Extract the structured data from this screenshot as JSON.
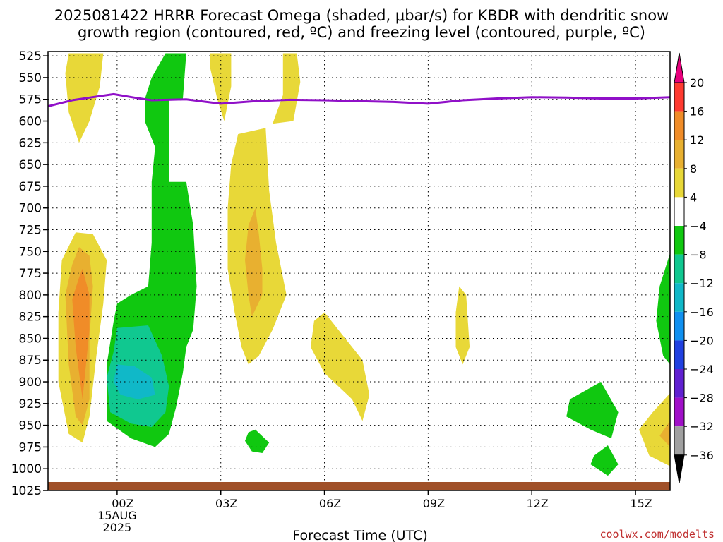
{
  "chart_data": {
    "type": "heatmap",
    "title_lines": [
      "2025081422 HRRR Forecast Omega (shaded, μbar/s) for KBDR with dendritic snow",
      "growth region (contoured, red, ºC) and freezing level (contoured, purple, ºC)"
    ],
    "xlabel": "Forecast Time (UTC)",
    "credit": "coolwx.com/modelts",
    "x_range_hours": [
      -2,
      16
    ],
    "y_range_hpa": [
      520,
      1025
    ],
    "y_ticks": [
      "525",
      "550",
      "575",
      "600",
      "625",
      "650",
      "675",
      "700",
      "725",
      "750",
      "775",
      "800",
      "825",
      "850",
      "875",
      "900",
      "925",
      "950",
      "975",
      "1000",
      "1025"
    ],
    "x_ticks": [
      {
        "hour": 0,
        "label": "00Z",
        "sub1": "15AUG",
        "sub2": "2025"
      },
      {
        "hour": 3,
        "label": "03Z"
      },
      {
        "hour": 6,
        "label": "06Z"
      },
      {
        "hour": 9,
        "label": "09Z"
      },
      {
        "hour": 12,
        "label": "12Z"
      },
      {
        "hour": 15,
        "label": "15Z"
      }
    ],
    "grid": true,
    "colorbar": {
      "levels": [
        "20",
        "16",
        "12",
        "8",
        "4",
        "−4",
        "−8",
        "−12",
        "−16",
        "−20",
        "−24",
        "−28",
        "−32",
        "−36"
      ],
      "bands": [
        "#e8007c",
        "#ff3a30",
        "#f08c28",
        "#e8b030",
        "#e8d838",
        "#ffffff",
        "#10c810",
        "#10c890",
        "#10b8c8",
        "#1090f0",
        "#2040e0",
        "#6020d0",
        "#a010c8",
        "#a0a0a0",
        "#000000"
      ]
    },
    "freezing_level": {
      "color": "#9010c8",
      "points": [
        [
          -2,
          583
        ],
        [
          -1.3,
          576
        ],
        [
          -0.8,
          573
        ],
        [
          -0.1,
          569
        ],
        [
          0.5,
          573
        ],
        [
          1,
          576
        ],
        [
          2,
          575
        ],
        [
          3,
          580
        ],
        [
          4,
          577
        ],
        [
          5,
          575.5
        ],
        [
          6,
          576
        ],
        [
          7,
          577
        ],
        [
          8,
          578
        ],
        [
          9,
          580
        ],
        [
          10,
          576
        ],
        [
          11,
          574
        ],
        [
          12,
          572.5
        ],
        [
          13,
          573
        ],
        [
          14,
          574
        ],
        [
          15,
          574
        ],
        [
          16,
          572.5
        ]
      ]
    },
    "terrain_color": "#a05028",
    "omega_regions": [
      {
        "value": 6,
        "color": "#e8d838",
        "points": [
          [
            -1.4,
            522
          ],
          [
            -0.4,
            522
          ],
          [
            -0.5,
            560
          ],
          [
            -0.8,
            600
          ],
          [
            -1.1,
            625
          ],
          [
            -1.4,
            590
          ],
          [
            -1.5,
            545
          ]
        ]
      },
      {
        "value": -6,
        "color": "#10c810",
        "points": [
          [
            1.4,
            522
          ],
          [
            2.0,
            522
          ],
          [
            1.9,
            575
          ],
          [
            1.5,
            575
          ],
          [
            1.5,
            670
          ],
          [
            2.0,
            670
          ],
          [
            2.2,
            720
          ],
          [
            2.3,
            790
          ],
          [
            2.2,
            840
          ],
          [
            2.0,
            860
          ],
          [
            1.9,
            890
          ],
          [
            1.7,
            930
          ],
          [
            1.5,
            960
          ],
          [
            1.1,
            975
          ],
          [
            0.4,
            965
          ],
          [
            -0.3,
            945
          ],
          [
            -0.3,
            880
          ],
          [
            -0.1,
            830
          ],
          [
            0,
            810
          ],
          [
            0.4,
            800
          ],
          [
            0.9,
            790
          ],
          [
            1.0,
            740
          ],
          [
            1.0,
            690
          ],
          [
            1.0,
            670
          ],
          [
            1.1,
            630
          ],
          [
            0.8,
            600
          ],
          [
            0.8,
            575
          ],
          [
            1.0,
            550
          ]
        ]
      },
      {
        "value": -10,
        "color": "#10c890",
        "points": [
          [
            0,
            838
          ],
          [
            0.9,
            835
          ],
          [
            1.3,
            870
          ],
          [
            1.5,
            905
          ],
          [
            1.4,
            935
          ],
          [
            1.0,
            952
          ],
          [
            0.4,
            948
          ],
          [
            -0.2,
            935
          ],
          [
            -0.3,
            895
          ],
          [
            -0.1,
            865
          ]
        ]
      },
      {
        "value": -14,
        "color": "#10b8c8",
        "points": [
          [
            0,
            880
          ],
          [
            0.5,
            882
          ],
          [
            1.0,
            895
          ],
          [
            1.1,
            915
          ],
          [
            0.6,
            920
          ],
          [
            0.1,
            915
          ],
          [
            -0.1,
            900
          ]
        ]
      },
      {
        "value": 6,
        "color": "#e8d838",
        "points": [
          [
            2.7,
            522
          ],
          [
            3.3,
            522
          ],
          [
            3.3,
            560
          ],
          [
            3.1,
            600
          ],
          [
            2.9,
            575
          ],
          [
            2.7,
            540
          ]
        ]
      },
      {
        "value": 6,
        "color": "#e8d838",
        "points": [
          [
            4.8,
            522
          ],
          [
            5.2,
            522
          ],
          [
            5.3,
            555
          ],
          [
            5.1,
            600
          ],
          [
            4.5,
            603
          ],
          [
            4.8,
            570
          ]
        ]
      },
      {
        "value": 6,
        "color": "#e8d838",
        "points": [
          [
            3.5,
            615
          ],
          [
            4.3,
            608
          ],
          [
            4.4,
            680
          ],
          [
            4.6,
            740
          ],
          [
            4.9,
            800
          ],
          [
            4.5,
            840
          ],
          [
            4.1,
            870
          ],
          [
            3.8,
            880
          ],
          [
            3.6,
            860
          ],
          [
            3.4,
            820
          ],
          [
            3.2,
            770
          ],
          [
            3.2,
            740
          ],
          [
            3.2,
            700
          ],
          [
            3.3,
            650
          ]
        ]
      },
      {
        "value": 10,
        "color": "#e8b030",
        "points": [
          [
            4.0,
            700
          ],
          [
            4.1,
            730
          ],
          [
            4.2,
            770
          ],
          [
            4.2,
            800
          ],
          [
            3.9,
            825
          ],
          [
            3.8,
            800
          ],
          [
            3.7,
            760
          ],
          [
            3.8,
            720
          ]
        ]
      },
      {
        "value": 6,
        "color": "#e8d838",
        "points": [
          [
            -1.2,
            728
          ],
          [
            -0.7,
            730
          ],
          [
            -0.3,
            760
          ],
          [
            -0.4,
            810
          ],
          [
            -0.6,
            870
          ],
          [
            -0.8,
            940
          ],
          [
            -1.0,
            970
          ],
          [
            -1.4,
            960
          ],
          [
            -1.7,
            900
          ],
          [
            -1.7,
            820
          ],
          [
            -1.6,
            760
          ]
        ]
      },
      {
        "value": 10,
        "color": "#e8b030",
        "points": [
          [
            -1.1,
            745
          ],
          [
            -0.8,
            755
          ],
          [
            -0.7,
            790
          ],
          [
            -0.8,
            850
          ],
          [
            -0.8,
            920
          ],
          [
            -1.0,
            950
          ],
          [
            -1.2,
            940
          ],
          [
            -1.4,
            880
          ],
          [
            -1.5,
            800
          ],
          [
            -1.3,
            765
          ]
        ]
      },
      {
        "value": 14,
        "color": "#f08c28",
        "points": [
          [
            -1.0,
            770
          ],
          [
            -0.8,
            800
          ],
          [
            -0.8,
            840
          ],
          [
            -0.9,
            880
          ],
          [
            -1.0,
            920
          ],
          [
            -1.2,
            860
          ],
          [
            -1.3,
            805
          ],
          [
            -1.1,
            780
          ]
        ]
      },
      {
        "value": 6,
        "color": "#e8d838",
        "points": [
          [
            5.7,
            830
          ],
          [
            6.0,
            820
          ],
          [
            6.6,
            850
          ],
          [
            7.1,
            875
          ],
          [
            7.3,
            915
          ],
          [
            7.1,
            945
          ],
          [
            6.8,
            920
          ],
          [
            6.0,
            890
          ],
          [
            5.6,
            860
          ]
        ]
      },
      {
        "value": 6,
        "color": "#e8d838",
        "points": [
          [
            9.9,
            790
          ],
          [
            10.1,
            800
          ],
          [
            10.2,
            860
          ],
          [
            10.0,
            880
          ],
          [
            9.8,
            860
          ],
          [
            9.8,
            820
          ]
        ]
      },
      {
        "value": -6,
        "color": "#10c810",
        "points": [
          [
            3.8,
            958
          ],
          [
            4.0,
            955
          ],
          [
            4.4,
            970
          ],
          [
            4.2,
            982
          ],
          [
            3.9,
            980
          ],
          [
            3.7,
            968
          ]
        ]
      },
      {
        "value": -6,
        "color": "#10c810",
        "points": [
          [
            13.1,
            920
          ],
          [
            14.0,
            900
          ],
          [
            14.5,
            935
          ],
          [
            14.3,
            965
          ],
          [
            13.7,
            955
          ],
          [
            13.0,
            940
          ]
        ]
      },
      {
        "value": -6,
        "color": "#10c810",
        "points": [
          [
            13.8,
            985
          ],
          [
            14.2,
            973
          ],
          [
            14.5,
            995
          ],
          [
            14.2,
            1008
          ],
          [
            13.9,
            1000
          ],
          [
            13.7,
            995
          ]
        ]
      },
      {
        "value": -6,
        "color": "#10c810",
        "points": [
          [
            16,
            752
          ],
          [
            15.7,
            790
          ],
          [
            15.6,
            830
          ],
          [
            15.8,
            870
          ],
          [
            16,
            880
          ]
        ]
      },
      {
        "value": 6,
        "color": "#e8d838",
        "points": [
          [
            16,
            913
          ],
          [
            15.5,
            935
          ],
          [
            15.1,
            955
          ],
          [
            15.4,
            985
          ],
          [
            16,
            997
          ]
        ]
      },
      {
        "value": 10,
        "color": "#e8b030",
        "points": [
          [
            16,
            945
          ],
          [
            15.7,
            962
          ],
          [
            16,
            975
          ]
        ]
      }
    ]
  }
}
